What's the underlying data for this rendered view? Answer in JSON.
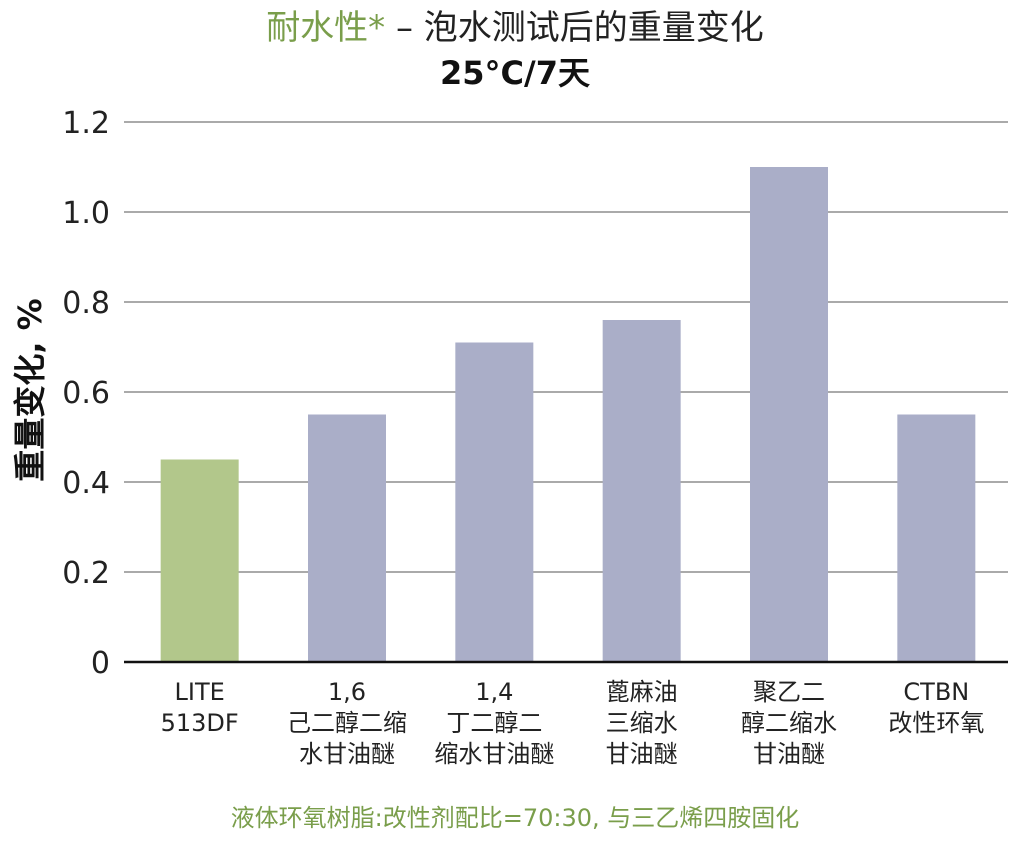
{
  "chart_data": {
    "type": "bar",
    "title_accent": "耐水性*",
    "title_rest": " – 泡水测试后的重量变化",
    "subtitle": "25°C/7天",
    "ylabel": "重量变化, %",
    "xlabel": "",
    "ylim": [
      0,
      1.2
    ],
    "yticks": [
      "0",
      "0.2",
      "0.4",
      "0.6",
      "0.8",
      "1.0",
      "1.2"
    ],
    "ytick_values": [
      0,
      0.2,
      0.4,
      0.6,
      0.8,
      1.0,
      1.2
    ],
    "grid": true,
    "categories": [
      [
        "LITE",
        "513DF"
      ],
      [
        "1,6",
        "己二醇二缩",
        "水甘油醚"
      ],
      [
        "1,4",
        "丁二醇二",
        "缩水甘油醚"
      ],
      [
        "蓖麻油",
        "三缩水",
        "甘油醚"
      ],
      [
        "聚乙二",
        "醇二缩水",
        "甘油醚"
      ],
      [
        "CTBN",
        "改性环氧"
      ]
    ],
    "values": [
      0.45,
      0.55,
      0.71,
      0.76,
      1.1,
      0.55
    ],
    "bar_colors": [
      "#b2c78b",
      "#aaaec8",
      "#aaaec8",
      "#aaaec8",
      "#aaaec8",
      "#aaaec8"
    ],
    "footnote": "液体环氧树脂:改性剂配比=70:30, 与三乙烯四胺固化"
  }
}
